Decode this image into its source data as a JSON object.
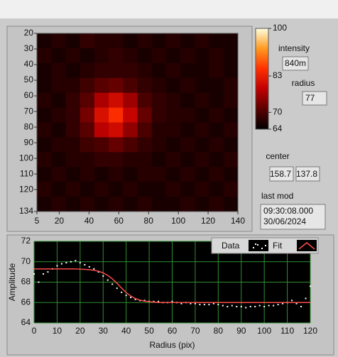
{
  "chart_data": [
    {
      "type": "heatmap",
      "xlim": [
        5,
        140
      ],
      "ylim": [
        20,
        134
      ],
      "y_inverted": true,
      "xticks": [
        5,
        20,
        40,
        60,
        80,
        100,
        120,
        140
      ],
      "yticks": [
        20,
        30,
        40,
        50,
        60,
        70,
        80,
        90,
        100,
        110,
        120,
        134
      ],
      "z": [
        [
          66,
          67,
          66,
          68,
          67,
          67,
          66,
          67,
          66,
          67,
          66,
          67,
          66,
          66
        ],
        [
          67,
          66,
          67,
          66,
          67,
          68,
          67,
          66,
          67,
          66,
          67,
          66,
          67,
          66
        ],
        [
          66,
          67,
          66,
          67,
          68,
          68,
          68,
          67,
          66,
          67,
          66,
          66,
          67,
          66
        ],
        [
          66,
          67,
          67,
          69,
          71,
          72,
          70,
          68,
          67,
          66,
          67,
          66,
          66,
          67
        ],
        [
          67,
          66,
          68,
          71,
          77,
          80,
          76,
          70,
          68,
          67,
          66,
          67,
          66,
          67
        ],
        [
          66,
          67,
          68,
          73,
          81,
          85,
          79,
          72,
          68,
          67,
          67,
          66,
          67,
          66
        ],
        [
          67,
          66,
          68,
          71,
          78,
          80,
          75,
          70,
          67,
          67,
          66,
          67,
          66,
          67
        ],
        [
          66,
          67,
          67,
          69,
          70,
          72,
          70,
          68,
          67,
          66,
          67,
          66,
          67,
          66
        ],
        [
          67,
          66,
          67,
          67,
          68,
          68,
          67,
          67,
          66,
          67,
          66,
          67,
          66,
          67
        ],
        [
          66,
          67,
          66,
          67,
          66,
          67,
          66,
          67,
          67,
          66,
          67,
          66,
          67,
          66
        ],
        [
          67,
          66,
          67,
          66,
          67,
          66,
          67,
          66,
          66,
          67,
          66,
          67,
          66,
          67
        ],
        [
          66,
          67,
          66,
          67,
          66,
          67,
          66,
          67,
          66,
          66,
          67,
          66,
          67,
          66
        ]
      ],
      "colorbar": {
        "lim": [
          64,
          100
        ],
        "ticks": [
          64,
          70,
          83,
          100
        ]
      },
      "colormap": [
        "#000000",
        "#5a0000",
        "#c00000",
        "#ff3000",
        "#ff9a20",
        "#ffffe0"
      ]
    },
    {
      "type": "line",
      "xlabel": "Radius (pix)",
      "ylabel": "Amplitude",
      "x": [
        0,
        2,
        4,
        6,
        8,
        10,
        12,
        14,
        16,
        18,
        20,
        22,
        24,
        26,
        28,
        30,
        32,
        34,
        36,
        38,
        40,
        42,
        44,
        46,
        48,
        50,
        52,
        54,
        56,
        58,
        60,
        62,
        64,
        66,
        68,
        70,
        72,
        74,
        76,
        78,
        80,
        82,
        84,
        86,
        88,
        90,
        92,
        94,
        96,
        98,
        100,
        102,
        104,
        106,
        108,
        110,
        112,
        114,
        116,
        118,
        120
      ],
      "series": [
        {
          "name": "Data",
          "color": "#ffffff",
          "style": "points",
          "values": [
            68.8,
            68.0,
            68.8,
            69.0,
            69.3,
            69.6,
            69.8,
            69.9,
            70.0,
            70.1,
            69.9,
            69.7,
            69.5,
            69.3,
            69.0,
            68.6,
            68.2,
            67.8,
            67.4,
            67.0,
            66.7,
            66.5,
            66.3,
            66.2,
            66.2,
            66.1,
            66.1,
            66.1,
            66.0,
            66.0,
            66.1,
            66.0,
            65.9,
            66.0,
            65.9,
            65.9,
            65.8,
            65.8,
            65.8,
            65.9,
            65.8,
            65.7,
            65.6,
            65.7,
            65.6,
            65.6,
            65.5,
            65.6,
            65.6,
            65.7,
            65.6,
            65.7,
            65.7,
            65.8,
            65.9,
            66.0,
            66.2,
            65.9,
            65.6,
            66.4,
            67.6
          ]
        },
        {
          "name": "Fit",
          "color": "#ff4a4a",
          "style": "line",
          "values": [
            69.3,
            69.3,
            69.3,
            69.3,
            69.3,
            69.3,
            69.3,
            69.3,
            69.3,
            69.3,
            69.27,
            69.25,
            69.22,
            69.16,
            69.07,
            68.91,
            68.66,
            68.32,
            67.89,
            67.42,
            66.98,
            66.64,
            66.39,
            66.24,
            66.14,
            66.08,
            66.04,
            66.0,
            66.0,
            66.0,
            66.0,
            66.0,
            66.0,
            66.0,
            66.0,
            66.0,
            66.0,
            66.0,
            66.0,
            66.0,
            66.0,
            66.0,
            66.0,
            66.0,
            66.0,
            66.0,
            66.0,
            66.0,
            66.0,
            66.0,
            66.0,
            66.0,
            66.0,
            66.0,
            66.0,
            66.0,
            66.0,
            66.0,
            66.0,
            66.0,
            66.0
          ]
        }
      ],
      "xlim": [
        0,
        120
      ],
      "ylim": [
        64,
        72
      ],
      "xticks": [
        0,
        10,
        20,
        30,
        40,
        50,
        60,
        70,
        80,
        90,
        100,
        110,
        120
      ],
      "yticks": [
        64,
        66,
        68,
        70,
        72
      ],
      "grid": true,
      "grid_color": "#2f8f2f"
    }
  ],
  "indicators": {
    "intensity": {
      "label": "intensity",
      "value": "840m"
    },
    "radius": {
      "label": "radius",
      "value": "77"
    },
    "center": {
      "label": "center",
      "values": [
        "158.7",
        "137.8"
      ]
    },
    "last_mod": {
      "label": "last mod",
      "lines": [
        "09:30:08.000",
        "30/06/2024"
      ]
    }
  }
}
